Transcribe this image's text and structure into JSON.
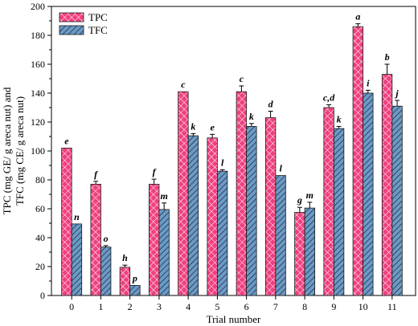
{
  "chart_data": {
    "type": "bar",
    "xlabel": "Trial number",
    "ylabel": [
      "TPC (mg GE/ g areca nut) and",
      "TFC (mg CE/ g areca nut)"
    ],
    "ylim": [
      0,
      200
    ],
    "yticks": [
      0,
      20,
      40,
      60,
      80,
      100,
      120,
      140,
      160,
      180,
      200
    ],
    "grid": false,
    "legend_position": "top-left",
    "categories": [
      "0",
      "1",
      "2",
      "3",
      "4",
      "5",
      "6",
      "7",
      "8",
      "9",
      "10",
      "11"
    ],
    "series": [
      {
        "name": "TPC",
        "color": "#f0407f",
        "pattern": "crosshatch",
        "values": [
          102,
          77,
          19.5,
          77,
          141,
          109,
          141,
          123,
          57.5,
          130,
          186,
          153
        ],
        "errors": [
          0,
          2,
          1.5,
          3.5,
          0,
          2.5,
          4,
          4.5,
          3.5,
          2,
          2,
          7
        ],
        "letters": [
          "e",
          "f",
          "h",
          "f",
          "c",
          "e",
          "c",
          "d",
          "g",
          "c,d",
          "a",
          "b"
        ]
      },
      {
        "name": "TFC",
        "color": "#6d9bc3",
        "pattern": "diagonal",
        "values": [
          49.5,
          33.5,
          7,
          59.5,
          110.5,
          86,
          117,
          83,
          60.5,
          115.5,
          140,
          131
        ],
        "errors": [
          0,
          1,
          0,
          4.5,
          1.5,
          1,
          2,
          0,
          4,
          1.5,
          2,
          4
        ],
        "letters": [
          "n",
          "o",
          "p",
          "m",
          "k",
          "l",
          "k",
          "l",
          "m",
          "k",
          "i",
          "j"
        ]
      }
    ]
  }
}
